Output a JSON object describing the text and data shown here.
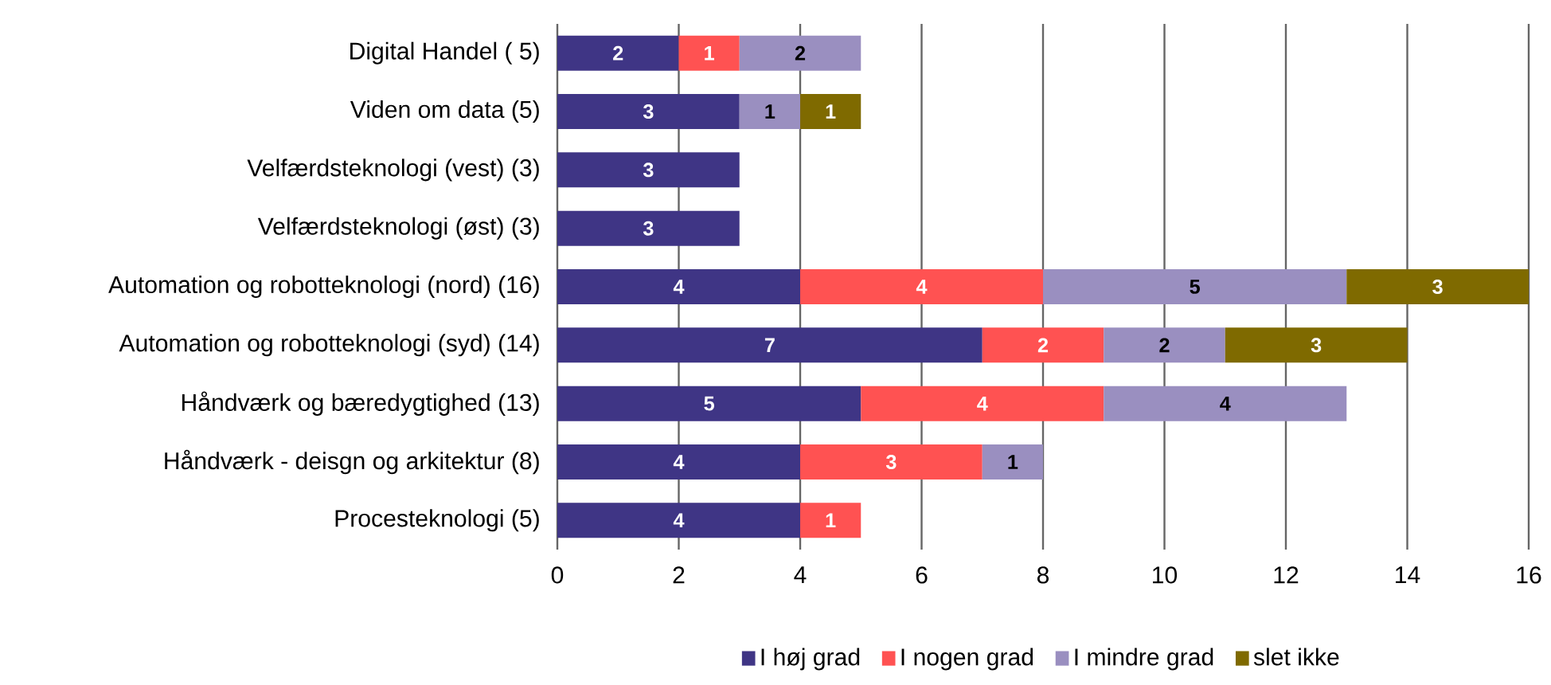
{
  "chart_data": {
    "type": "bar",
    "orientation": "horizontal",
    "stacked": true,
    "categories": [
      "Digital Handel ( 5)",
      "Viden om data (5)",
      "Velfærdsteknologi (vest) (3)",
      "Velfærdsteknologi (øst) (3)",
      "Automation og robotteknologi (nord) (16)",
      "Automation og robotteknologi (syd) (14)",
      "Håndværk og bæredygtighed (13)",
      "Håndværk - deisgn og arkitektur (8)",
      "Procesteknologi (5)"
    ],
    "series": [
      {
        "name": "I høj grad",
        "color": "#3f3585",
        "values": [
          2,
          3,
          3,
          3,
          4,
          7,
          5,
          4,
          4
        ]
      },
      {
        "name": "I nogen grad",
        "color": "#ff5252",
        "values": [
          1,
          null,
          null,
          null,
          4,
          2,
          4,
          3,
          1
        ]
      },
      {
        "name": "I mindre grad",
        "color": "#9a8fc0",
        "values": [
          2,
          1,
          null,
          null,
          5,
          2,
          4,
          1,
          null
        ]
      },
      {
        "name": "slet ikke",
        "color": "#7f6a00",
        "values": [
          null,
          1,
          null,
          null,
          3,
          3,
          null,
          null,
          null
        ]
      }
    ],
    "xlim": [
      0,
      16
    ],
    "xticks": [
      0,
      2,
      4,
      6,
      8,
      10,
      12,
      14,
      16
    ],
    "grid": "x",
    "legend": "bottom",
    "data_labels": true
  }
}
